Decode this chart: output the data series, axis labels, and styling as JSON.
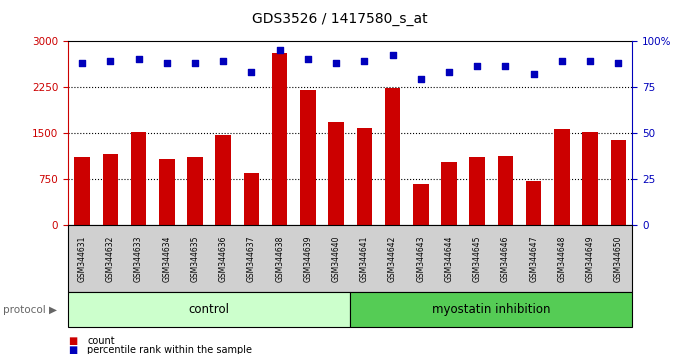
{
  "title": "GDS3526 / 1417580_s_at",
  "samples": [
    "GSM344631",
    "GSM344632",
    "GSM344633",
    "GSM344634",
    "GSM344635",
    "GSM344636",
    "GSM344637",
    "GSM344638",
    "GSM344639",
    "GSM344640",
    "GSM344641",
    "GSM344642",
    "GSM344643",
    "GSM344644",
    "GSM344645",
    "GSM344646",
    "GSM344647",
    "GSM344648",
    "GSM344649",
    "GSM344650"
  ],
  "bar_values": [
    1100,
    1150,
    1520,
    1080,
    1110,
    1460,
    850,
    2800,
    2200,
    1680,
    1570,
    2230,
    660,
    1020,
    1100,
    1120,
    720,
    1560,
    1520,
    1380
  ],
  "dot_values": [
    88,
    89,
    90,
    88,
    88,
    89,
    83,
    95,
    90,
    88,
    89,
    92,
    79,
    83,
    86,
    86,
    82,
    89,
    89,
    88
  ],
  "bar_color": "#cc0000",
  "dot_color": "#0000bb",
  "ylim_left": [
    0,
    3000
  ],
  "ylim_right": [
    0,
    100
  ],
  "yticks_left": [
    0,
    750,
    1500,
    2250,
    3000
  ],
  "yticks_right": [
    0,
    25,
    50,
    75,
    100
  ],
  "ytick_labels_right": [
    "0",
    "25",
    "50",
    "75",
    "100%"
  ],
  "control_count": 10,
  "control_label": "control",
  "myostatin_label": "myostatin inhibition",
  "protocol_label": "protocol",
  "legend_bar": "count",
  "legend_dot": "percentile rank within the sample",
  "grid_values": [
    750,
    1500,
    2250
  ],
  "plot_bg": "#ffffff",
  "control_bg": "#ccffcc",
  "myostatin_bg": "#55cc55",
  "ticklabel_bg": "#d0d0d0"
}
